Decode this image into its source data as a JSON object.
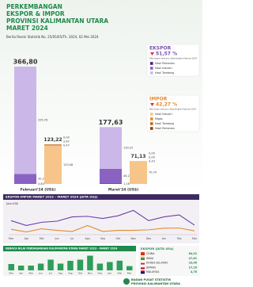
{
  "header": {
    "title": [
      "PERKEMBANGAN",
      "EKSPOR & IMPOR",
      "PROVINSI KALIMANTAN UTARA",
      "MARET 2024"
    ],
    "subtitle": "Berita Resmi Statistik No. 25/05/65/Th. 2024, 02 Mei 2024"
  },
  "chart_data": [
    {
      "type": "stacked_bar",
      "categories": [
        "Februari'24 (US$)",
        "Maret'24 (US$)"
      ],
      "groups": [
        {
          "name": "EKSPOR",
          "change": "51,57 %",
          "note": "Nilai ekspor menurun dibandingkan Februari 2024",
          "color": "#7b4fb0",
          "totals": [
            366.8,
            177.63
          ],
          "total_labels": [
            "366,80",
            "177,63"
          ],
          "series": [
            {
              "name": "Hasil Pertanian",
              "color": "#3f2473",
              "values": [
                0.84,
                1.16
              ],
              "value_labels": [
                "0,84",
                "1,16"
              ]
            },
            {
              "name": "Hasil Industri",
              "color": "#8a63c2",
              "values": [
                30.2,
                46.24
              ],
              "value_labels": [
                "30,20",
                "46,24"
              ]
            },
            {
              "name": "Hasil Tambang",
              "color": "#cbb8e8",
              "values": [
                335.76,
                130.25
              ],
              "value_labels": [
                "335,76",
                "130,25"
              ]
            }
          ]
        },
        {
          "name": "IMPOR",
          "change": "42,27 %",
          "note": "Nilai impor menurun dibandingkan Februari 2024",
          "color": "#e8892c",
          "totals": [
            123.22,
            71.13
          ],
          "total_labels": [
            "123,22",
            "71,13"
          ],
          "series": [
            {
              "name": "Hasil Industri",
              "color": "#f7c489",
              "values": [
                120.08,
                70.7
              ],
              "value_labels": [
                "120,08",
                "70,70"
              ]
            },
            {
              "name": "Migas",
              "color": "#e8892c",
              "values": [
                0.47,
                0.43
              ],
              "value_labels": [
                "0,47",
                "0,43"
              ]
            },
            {
              "name": "Hasil Tambang",
              "color": "#c0661a",
              "values": [
                2.67,
                0
              ],
              "value_labels": [
                "2,67",
                "0,00"
              ]
            },
            {
              "name": "Hasil Pertanian",
              "color": "#8a4510",
              "values": [
                0,
                0
              ],
              "value_labels": [
                "0,00",
                "0,00"
              ]
            }
          ]
        }
      ]
    },
    {
      "type": "line",
      "title": "EKSPOR-IMPOR MARET 2023 – MARET 2024 (JUTA US$)",
      "ylabel": "Juta US$",
      "categories": [
        "Mar",
        "Apr",
        "Mei",
        "Jun",
        "Jul",
        "Agu",
        "Sep",
        "Okt",
        "Nov",
        "Des",
        "Jan",
        "Feb",
        "Mar"
      ],
      "ylim": [
        0,
        500
      ],
      "series": [
        {
          "name": "Ekspor",
          "color": "#6a3fa6",
          "values": [
            260,
            170,
            230,
            250,
            330,
            340,
            300,
            350,
            450,
            260,
            330,
            366.8,
            177.63
          ]
        },
        {
          "name": "Impor",
          "color": "#e8892c",
          "values": [
            100,
            50,
            110,
            80,
            60,
            170,
            60,
            80,
            80,
            90,
            120,
            123.22,
            71.13
          ]
        }
      ]
    },
    {
      "type": "bar",
      "title": "NERACA NILAI PERDAGANGAN KALIMANTAN UTARA MARET 2023 – MARET 2024",
      "categories": [
        "Mar",
        "Apr",
        "Mei",
        "Jun",
        "Jul",
        "Agu",
        "Sep",
        "Okt",
        "Nov",
        "Des",
        "Jan",
        "Feb",
        "Mar"
      ],
      "values": [
        160,
        120,
        120,
        170,
        270,
        170,
        240,
        270,
        370,
        170,
        210,
        243.58,
        106.5
      ],
      "color": "#2e9e5b",
      "ylim": [
        0,
        400
      ]
    }
  ],
  "destinations": {
    "title": "EKSPOR (JUTA US$)",
    "items": [
      {
        "country": "CHINA",
        "value": "64,92"
      },
      {
        "country": "INDIA",
        "value": "47,61"
      },
      {
        "country": "KOREA SELATAN",
        "value": "23,06"
      },
      {
        "country": "JEPANG",
        "value": "17,16"
      },
      {
        "country": "MALAYSIA",
        "value": "4,76"
      }
    ]
  },
  "footer": [
    "BADAN PUSAT STATISTIK",
    "PROVINSI KALIMANTAN UTARA"
  ]
}
